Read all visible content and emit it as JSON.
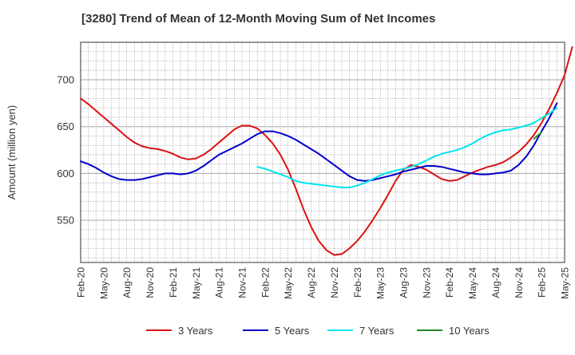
{
  "chart_data": {
    "type": "line",
    "title": "[3280]  Trend of Mean of 12-Month Moving Sum of Net Incomes",
    "xlabel": "",
    "ylabel": "Amount (million yen)",
    "x_ticks": [
      "Feb-20",
      "May-20",
      "Aug-20",
      "Nov-20",
      "Feb-21",
      "May-21",
      "Aug-21",
      "Nov-21",
      "Feb-22",
      "May-22",
      "Aug-22",
      "Nov-22",
      "Feb-23",
      "May-23",
      "Aug-23",
      "Nov-23",
      "Feb-24",
      "May-24",
      "Aug-24",
      "Nov-24",
      "Feb-25",
      "May-25"
    ],
    "y_ticks": [
      550,
      600,
      650,
      700
    ],
    "xlim": [
      "2020-02",
      "2025-05"
    ],
    "ylim": [
      505,
      740
    ],
    "grid": true,
    "legend_position": "bottom",
    "series": [
      {
        "name": "3 Years",
        "color": "#dd1111",
        "start": "2020-02",
        "values": [
          680,
          674,
          667,
          660,
          653,
          646,
          639,
          633,
          629,
          627,
          626,
          624,
          621,
          617,
          615,
          616,
          620,
          626,
          633,
          640,
          647,
          651,
          651,
          648,
          641,
          632,
          620,
          604,
          584,
          562,
          543,
          528,
          518,
          513,
          514,
          520,
          528,
          538,
          550,
          563,
          577,
          592,
          604,
          609,
          607,
          604,
          599,
          594,
          592,
          593,
          597,
          601,
          604,
          607,
          609,
          612,
          617,
          623,
          631,
          641,
          654,
          669,
          686,
          705,
          735
        ]
      },
      {
        "name": "5 Years",
        "color": "#0000cc",
        "start": "2020-02",
        "values": [
          613,
          610,
          606,
          601,
          597,
          594,
          593,
          593,
          594,
          596,
          598,
          600,
          600,
          599,
          600,
          603,
          608,
          614,
          620,
          624,
          628,
          632,
          637,
          642,
          645,
          645,
          643,
          640,
          636,
          631,
          626,
          621,
          615,
          609,
          603,
          597,
          593,
          592,
          593,
          595,
          597,
          599,
          602,
          604,
          606,
          608,
          608,
          607,
          605,
          603,
          601,
          600,
          599,
          599,
          600,
          601,
          603,
          609,
          618,
          630,
          645,
          659,
          675
        ]
      },
      {
        "name": "7 Years",
        "color": "#00e5ee",
        "start": "2022-01",
        "values": [
          607,
          605,
          602,
          599,
          596,
          592,
          590,
          589,
          588,
          587,
          586,
          585,
          585,
          587,
          590,
          594,
          598,
          601,
          603,
          605,
          607,
          610,
          614,
          618,
          621,
          623,
          625,
          628,
          632,
          637,
          641,
          644,
          646,
          647,
          649,
          651,
          654,
          659,
          664,
          670
        ]
      },
      {
        "name": "10 Years",
        "color": "#228b22",
        "start": "2025-01",
        "values": [
          637,
          644
        ]
      }
    ]
  }
}
